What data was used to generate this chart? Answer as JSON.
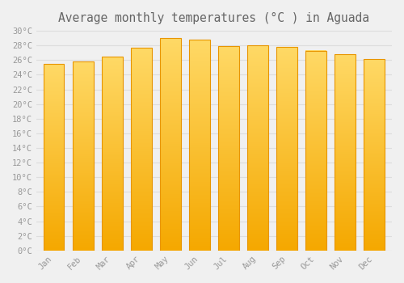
{
  "title": "Average monthly temperatures (°C ) in Aguada",
  "months": [
    "Jan",
    "Feb",
    "Mar",
    "Apr",
    "May",
    "Jun",
    "Jul",
    "Aug",
    "Sep",
    "Oct",
    "Nov",
    "Dec"
  ],
  "temperatures": [
    25.5,
    25.8,
    26.5,
    27.7,
    29.0,
    28.8,
    27.9,
    28.0,
    27.8,
    27.3,
    26.8,
    26.1
  ],
  "bar_color_bottom": "#F5A800",
  "bar_color_top": "#FFD966",
  "bar_edge_color": "#E89500",
  "ylim": [
    0,
    30
  ],
  "ytick_step": 2,
  "background_color": "#F0F0F0",
  "grid_color": "#DDDDDD",
  "font_color": "#999999",
  "title_fontsize": 10.5,
  "tick_fontsize": 7.5,
  "bar_width": 0.72
}
